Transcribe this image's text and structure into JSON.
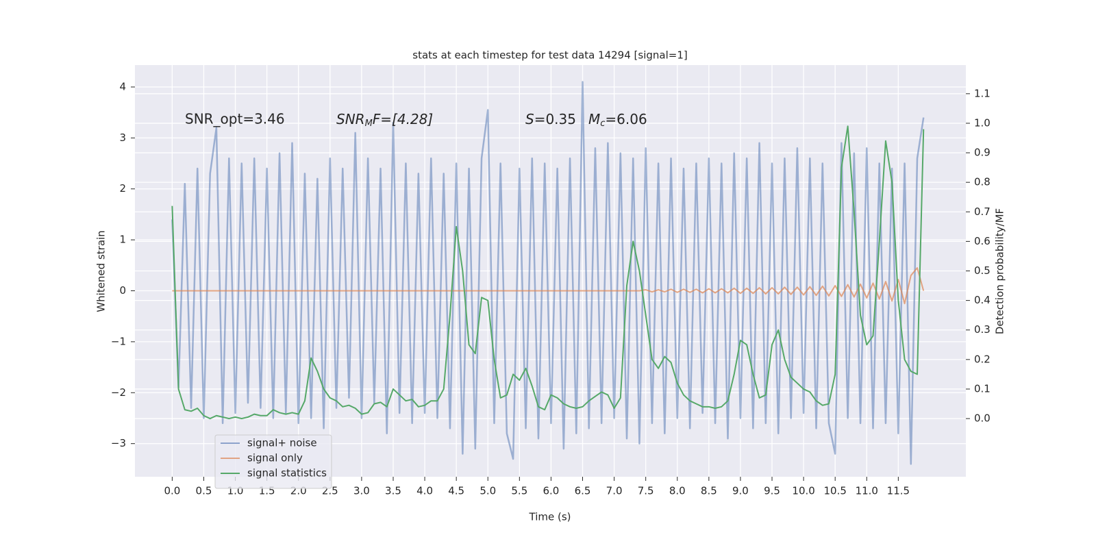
{
  "chart_data": {
    "type": "line",
    "title": "stats at each timestep for test data 14294 [signal=1]",
    "xlabel": "Time (s)",
    "ylabel": "Whitened strain",
    "y2label": "Detection probability/MF",
    "annotations": [
      {
        "text": "SNR_opt=3.46"
      },
      {
        "main": "SNR",
        "sub": "M",
        "tail": "F=[4.28]"
      },
      {
        "main": "S",
        "tail": "=0.35"
      },
      {
        "main": "M",
        "sub": "c",
        "tail": "=6.06"
      }
    ],
    "grid": true,
    "legend": "lower left",
    "xlim": [
      -0.59,
      12.57
    ],
    "ylim": [
      -3.65,
      4.43
    ],
    "y2lim": [
      -0.197,
      1.197
    ],
    "xticks": [
      {
        "value": 0,
        "label": "0.0"
      },
      0.5,
      {
        "value": 1,
        "label": "1.0"
      },
      1.5,
      {
        "value": 2,
        "label": "2.0"
      },
      2.5,
      {
        "value": 3,
        "label": "3.0"
      },
      3.5,
      {
        "value": 4,
        "label": "4.0"
      },
      4.5,
      {
        "value": 5,
        "label": "5.0"
      },
      5.5,
      {
        "value": 6,
        "label": "6.0"
      },
      6.5,
      {
        "value": 7,
        "label": "7.0"
      },
      7.5,
      {
        "value": 8,
        "label": "8.0"
      },
      8.5,
      {
        "value": 9,
        "label": "9.0"
      },
      9.5,
      {
        "value": 10,
        "label": "10.0"
      },
      10.5,
      {
        "value": 11,
        "label": "11.0"
      },
      11.5
    ],
    "yticks": [
      {
        "value": -3,
        "label": "−3"
      },
      {
        "value": -2,
        "label": "−2"
      },
      {
        "value": -1,
        "label": "−1"
      },
      0,
      1,
      2,
      3,
      4
    ],
    "y2ticks": [
      {
        "value": 0,
        "label": "0.0"
      },
      0.1,
      0.2,
      0.3,
      0.4,
      0.5,
      0.6,
      0.7,
      0.8,
      0.9,
      {
        "value": 1,
        "label": "1.0"
      },
      1.1
    ],
    "x": [
      0,
      0.1,
      0.2,
      0.3,
      0.4,
      0.5,
      0.6,
      0.7,
      0.8,
      0.9,
      1,
      1.1,
      1.2,
      1.3,
      1.4,
      1.5,
      1.6,
      1.7,
      1.8,
      1.9,
      2,
      2.1,
      2.2,
      2.3,
      2.4,
      2.5,
      2.6,
      2.7,
      2.8,
      2.9,
      3,
      3.1,
      3.2,
      3.3,
      3.4,
      3.5,
      3.6,
      3.7,
      3.8,
      3.9,
      4,
      4.1,
      4.2,
      4.3,
      4.4,
      4.5,
      4.6,
      4.7,
      4.8,
      4.9,
      5,
      5.1,
      5.2,
      5.3,
      5.4,
      5.5,
      5.6,
      5.7,
      5.8,
      5.9,
      6,
      6.1,
      6.2,
      6.3,
      6.4,
      6.5,
      6.6,
      6.7,
      6.8,
      6.9,
      7,
      7.1,
      7.2,
      7.3,
      7.4,
      7.5,
      7.6,
      7.7,
      7.8,
      7.9,
      8,
      8.1,
      8.2,
      8.3,
      8.4,
      8.5,
      8.6,
      8.7,
      8.8,
      8.9,
      9,
      9.1,
      9.2,
      9.3,
      9.4,
      9.5,
      9.6,
      9.7,
      9.8,
      9.9,
      10,
      10.1,
      10.2,
      10.3,
      10.4,
      10.5,
      10.6,
      10.7,
      10.8,
      10.9,
      11,
      11.1,
      11.2,
      11.3,
      11.4,
      11.5,
      11.6,
      11.7,
      11.8,
      11.9
    ],
    "series": [
      {
        "name": "signal+ noise",
        "color": "#4c72b0",
        "values": [
          1.4,
          -1.9,
          2.1,
          -2.3,
          2.4,
          -2.5,
          2.3,
          3.2,
          -2.6,
          2.6,
          -2.4,
          2.5,
          -2.2,
          2.6,
          -2.3,
          2.4,
          -2.5,
          2.7,
          -2.4,
          2.9,
          -2.6,
          2.3,
          -2.5,
          2.2,
          -2.7,
          2.6,
          -2.3,
          2.4,
          -2.1,
          3.1,
          -2.5,
          2.6,
          -2.2,
          2.4,
          -2.8,
          3.3,
          -2.4,
          2.5,
          -2.6,
          2.3,
          -2.4,
          2.6,
          -2.5,
          2.3,
          -2.7,
          2.5,
          -3.2,
          2.4,
          -3.1,
          2.6,
          3.55,
          -2.6,
          2.5,
          -2.8,
          -3.3,
          2.4,
          -2.7,
          2.6,
          -2.9,
          2.5,
          -2.6,
          2.4,
          -3.1,
          2.6,
          -2.8,
          4.1,
          -2.7,
          2.8,
          -2.6,
          2.9,
          -2.5,
          2.7,
          -2.9,
          2.6,
          -3.0,
          2.8,
          -2.6,
          2.5,
          -2.8,
          2.6,
          -2.5,
          2.4,
          -2.7,
          2.5,
          -2.4,
          2.6,
          -2.6,
          2.5,
          -2.9,
          2.7,
          -2.5,
          2.6,
          -2.7,
          2.9,
          -2.6,
          2.5,
          -2.8,
          2.6,
          -2.5,
          2.8,
          -2.4,
          2.6,
          -2.7,
          2.5,
          -2.6,
          -3.2,
          2.9,
          -2.5,
          2.7,
          -2.6,
          2.8,
          -2.7,
          2.5,
          -2.6,
          2.4,
          -2.8,
          2.5,
          -3.4,
          2.6,
          3.4
        ]
      },
      {
        "name": "signal only",
        "color": "#dd8452",
        "values": [
          0,
          0,
          0,
          0,
          0,
          0,
          0,
          0,
          0,
          0,
          0,
          0,
          0,
          0,
          0,
          0,
          0,
          0,
          0,
          0,
          0,
          0,
          0,
          0,
          0,
          0,
          0,
          0,
          0,
          0,
          0,
          0,
          0,
          0,
          0,
          0,
          0,
          0,
          0,
          0,
          0,
          0,
          0,
          0,
          0,
          0,
          0,
          0,
          0,
          0,
          0,
          0,
          0,
          0,
          0,
          0,
          0,
          0,
          0,
          0,
          0,
          0,
          0,
          0,
          0,
          0,
          0,
          0,
          0,
          0,
          0,
          0,
          0,
          0,
          0,
          0.02,
          -0.02,
          0.02,
          -0.02,
          0.03,
          -0.03,
          0.03,
          -0.03,
          0.03,
          -0.04,
          0.04,
          -0.04,
          0.04,
          -0.04,
          0.05,
          -0.05,
          0.05,
          -0.05,
          0.06,
          -0.06,
          0.06,
          -0.06,
          0.07,
          -0.07,
          0.07,
          -0.08,
          0.08,
          -0.09,
          0.09,
          -0.1,
          0.1,
          -0.11,
          0.12,
          -0.12,
          0.13,
          -0.14,
          0.15,
          -0.16,
          0.18,
          -0.2,
          0.22,
          -0.25,
          0.3,
          0.45,
          0
        ]
      },
      {
        "name": "signal statistics",
        "color": "#55a868",
        "axis": "y2",
        "values": [
          0.72,
          0.1,
          0.03,
          0.025,
          0.035,
          0.01,
          0,
          0.01,
          0.005,
          0,
          0.005,
          0,
          0.005,
          0.015,
          0.01,
          0.01,
          0.03,
          0.02,
          0.015,
          0.02,
          0.015,
          0.06,
          0.205,
          0.16,
          0.1,
          0.07,
          0.06,
          0.04,
          0.045,
          0.035,
          0.015,
          0.02,
          0.05,
          0.055,
          0.04,
          0.1,
          0.08,
          0.06,
          0.065,
          0.04,
          0.045,
          0.06,
          0.06,
          0.1,
          0.35,
          0.65,
          0.5,
          0.25,
          0.22,
          0.41,
          0.4,
          0.2,
          0.07,
          0.08,
          0.15,
          0.13,
          0.17,
          0.11,
          0.04,
          0.03,
          0.08,
          0.07,
          0.05,
          0.04,
          0.035,
          0.04,
          0.06,
          0.075,
          0.09,
          0.08,
          0.035,
          0.07,
          0.45,
          0.6,
          0.5,
          0.35,
          0.2,
          0.17,
          0.21,
          0.19,
          0.12,
          0.08,
          0.06,
          0.05,
          0.04,
          0.04,
          0.035,
          0.04,
          0.06,
          0.15,
          0.265,
          0.25,
          0.15,
          0.07,
          0.08,
          0.25,
          0.3,
          0.2,
          0.14,
          0.12,
          0.1,
          0.09,
          0.06,
          0.045,
          0.05,
          0.15,
          0.85,
          0.99,
          0.7,
          0.35,
          0.25,
          0.28,
          0.6,
          0.94,
          0.8,
          0.4,
          0.2,
          0.16,
          0.15,
          0.98
        ]
      }
    ]
  }
}
